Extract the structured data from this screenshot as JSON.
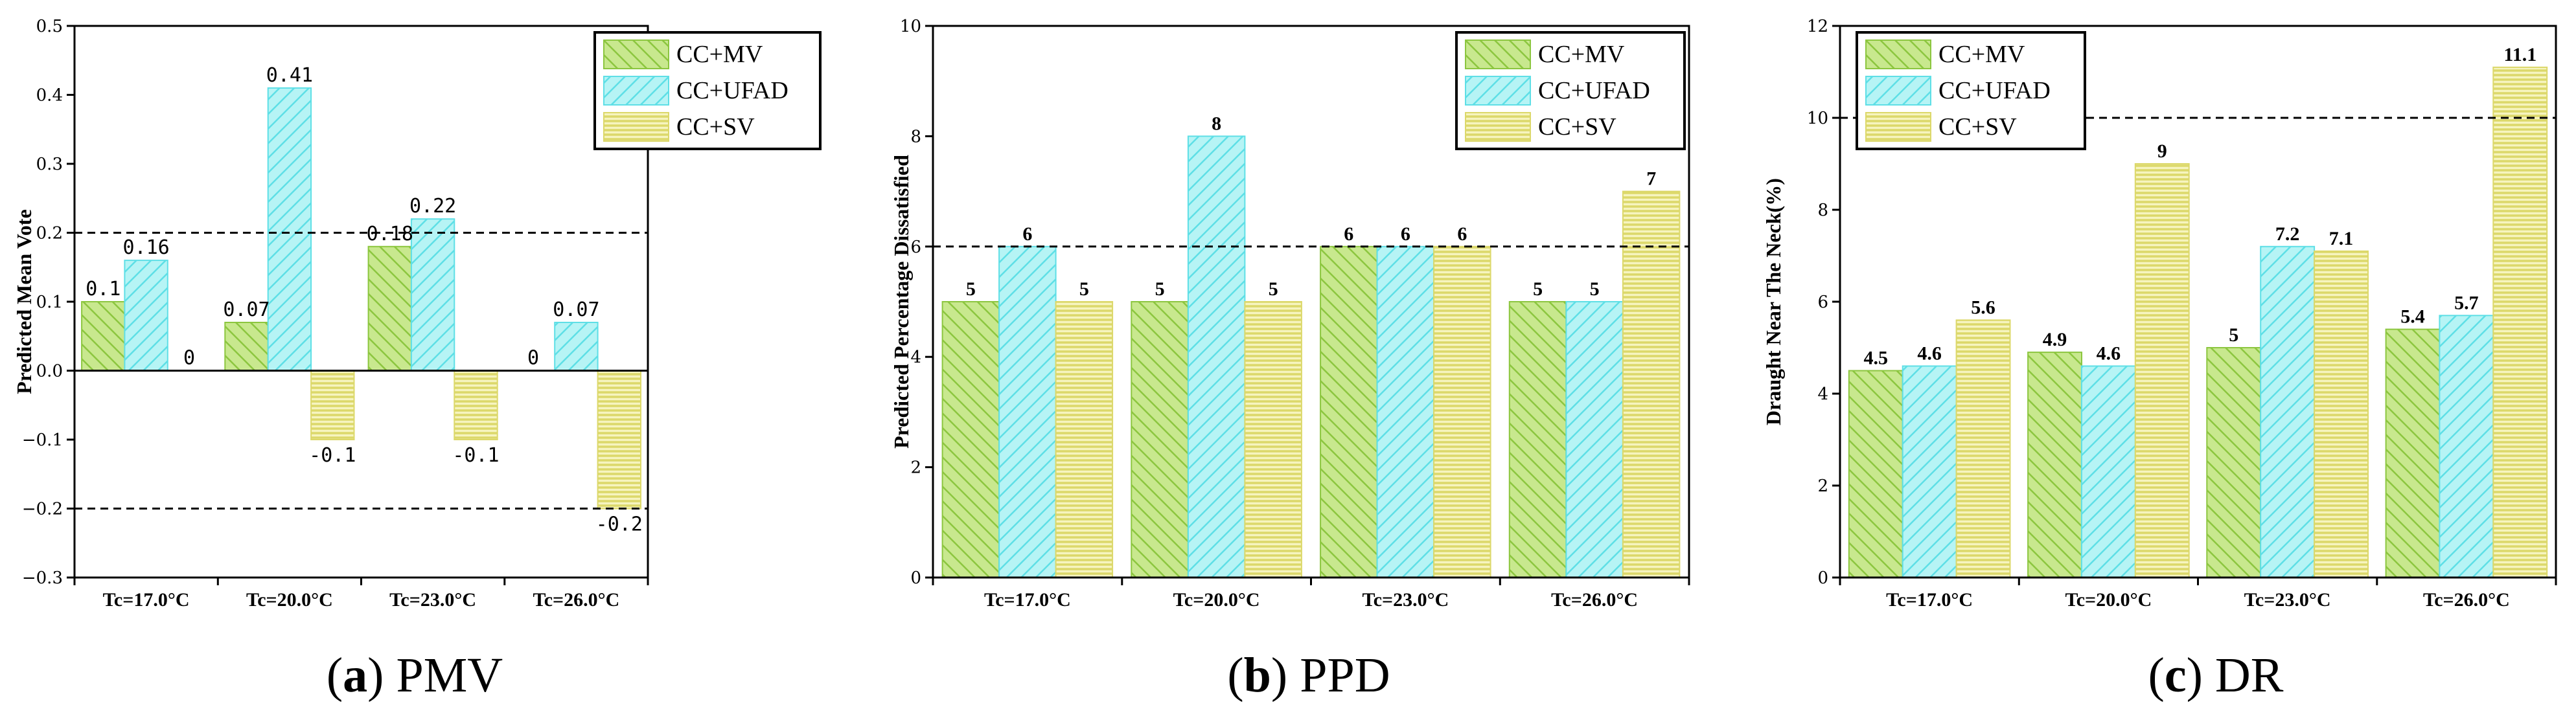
{
  "colors": {
    "CC+MV": "#9ed45a",
    "CC+UFAD": "#7fe9ee",
    "CC+SV": "#ecea8d",
    "axis": "#000000"
  },
  "chart_data": [
    {
      "id": "pmv",
      "type": "bar",
      "title": "",
      "caption": {
        "letter": "a",
        "text": "PMV"
      },
      "ylabel": "Predicted Mean Vote",
      "xlabel": "",
      "categories": [
        "Tc=17.0°C",
        "Tc=20.0°C",
        "Tc=23.0°C",
        "Tc=26.0°C"
      ],
      "series": [
        {
          "name": "CC+MV",
          "values": [
            0.1,
            0.07,
            0.18,
            0
          ]
        },
        {
          "name": "CC+UFAD",
          "values": [
            0.16,
            0.41,
            0.22,
            0.07
          ]
        },
        {
          "name": "CC+SV",
          "values": [
            0,
            -0.1,
            -0.1,
            -0.2
          ]
        }
      ],
      "value_labels": [
        [
          "0.1",
          "0.07",
          "0.18",
          "0"
        ],
        [
          "0.16",
          "0.41",
          "0.22",
          "0.07"
        ],
        [
          "0",
          "-0.1",
          "-0.1",
          "-0.2"
        ]
      ],
      "ylim": [
        -0.3,
        0.5
      ],
      "yticks": [
        -0.3,
        -0.2,
        -0.1,
        0.0,
        0.1,
        0.2,
        0.3,
        0.4,
        0.5
      ],
      "ytick_labels": [
        "−0.3",
        "−0.2",
        "−0.1",
        "0.0",
        "0.1",
        "0.2",
        "0.3",
        "0.4",
        "0.5"
      ],
      "reference_lines": [
        0.2,
        -0.2
      ],
      "zero_line": true,
      "legend": {
        "position": "top-right",
        "entries": [
          "CC+MV",
          "CC+UFAD",
          "CC+SV"
        ]
      }
    },
    {
      "id": "ppd",
      "type": "bar",
      "title": "",
      "caption": {
        "letter": "b",
        "text": "PPD"
      },
      "ylabel": "Predicted Percentage Dissatisfied",
      "xlabel": "",
      "categories": [
        "Tc=17.0°C",
        "Tc=20.0°C",
        "Tc=23.0°C",
        "Tc=26.0°C"
      ],
      "series": [
        {
          "name": "CC+MV",
          "values": [
            5,
            5,
            6,
            5
          ]
        },
        {
          "name": "CC+UFAD",
          "values": [
            6,
            8,
            6,
            5
          ]
        },
        {
          "name": "CC+SV",
          "values": [
            5,
            5,
            6,
            7
          ]
        }
      ],
      "value_labels": [
        [
          "5",
          "5",
          "6",
          "5"
        ],
        [
          "6",
          "8",
          "6",
          "5"
        ],
        [
          "5",
          "5",
          "6",
          "7"
        ]
      ],
      "ylim": [
        0,
        10
      ],
      "yticks": [
        0,
        2,
        4,
        6,
        8,
        10
      ],
      "ytick_labels": [
        "0",
        "2",
        "4",
        "6",
        "8",
        "10"
      ],
      "reference_lines": [
        6
      ],
      "zero_line": false,
      "legend": {
        "position": "top-right",
        "entries": [
          "CC+MV",
          "CC+UFAD",
          "CC+SV"
        ]
      }
    },
    {
      "id": "dr",
      "type": "bar",
      "title": "",
      "caption": {
        "letter": "c",
        "text": "DR"
      },
      "ylabel": "Draught Near The Neck(%)",
      "xlabel": "",
      "categories": [
        "Tc=17.0°C",
        "Tc=20.0°C",
        "Tc=23.0°C",
        "Tc=26.0°C"
      ],
      "series": [
        {
          "name": "CC+MV",
          "values": [
            4.5,
            4.9,
            5,
            5.4
          ]
        },
        {
          "name": "CC+UFAD",
          "values": [
            4.6,
            4.6,
            7.2,
            5.7
          ]
        },
        {
          "name": "CC+SV",
          "values": [
            5.6,
            9,
            7.1,
            11.1
          ]
        }
      ],
      "value_labels": [
        [
          "4.5",
          "4.9",
          "5",
          "5.4"
        ],
        [
          "4.6",
          "4.6",
          "7.2",
          "5.7"
        ],
        [
          "5.6",
          "9",
          "7.1",
          "11.1"
        ]
      ],
      "ylim": [
        0,
        12
      ],
      "yticks": [
        0,
        2,
        4,
        6,
        8,
        10,
        12
      ],
      "ytick_labels": [
        "0",
        "2",
        "4",
        "6",
        "8",
        "10",
        "12"
      ],
      "reference_lines": [
        10
      ],
      "zero_line": false,
      "legend": {
        "position": "top-left",
        "entries": [
          "CC+MV",
          "CC+UFAD",
          "CC+SV"
        ]
      }
    }
  ]
}
